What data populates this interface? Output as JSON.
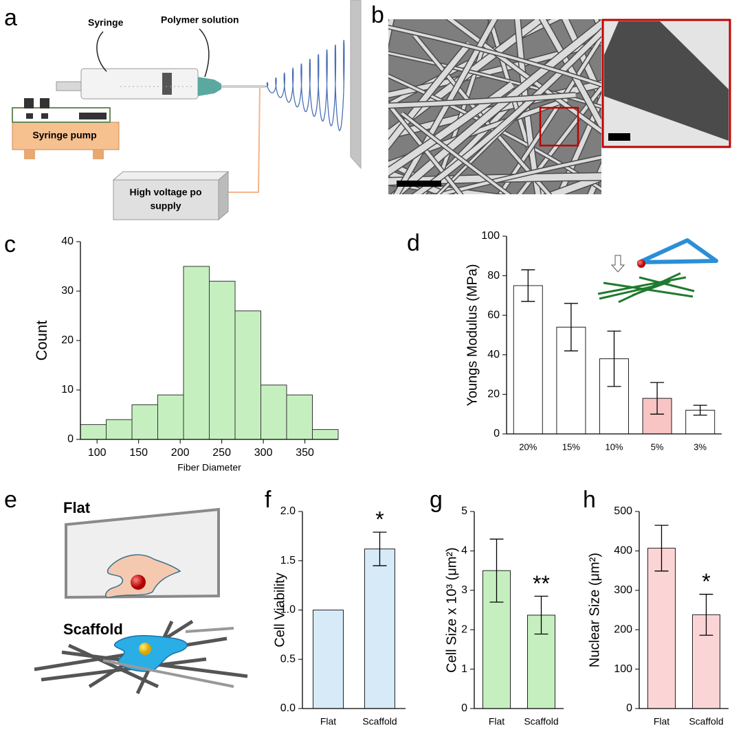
{
  "panel_labels": [
    "a",
    "b",
    "c",
    "d",
    "e",
    "f",
    "g",
    "h"
  ],
  "diagram_a": {
    "syringe": "Syringe",
    "polymer": "Polymer solution",
    "pump": "Syringe pump",
    "power": [
      "High voltage po",
      "supply"
    ]
  },
  "diagram_e": {
    "flat": "Flat",
    "scaffold": "Scaffold"
  },
  "chart_data": [
    {
      "type": "histogram",
      "x_label": "Fiber Diameter",
      "y_label": "Count",
      "bins": [
        80,
        111,
        142,
        173,
        204,
        235,
        266,
        297,
        328,
        359,
        390
      ],
      "values": [
        3,
        4,
        7,
        9,
        35,
        32,
        26,
        11,
        9,
        2
      ],
      "color": "#c6efc0",
      "xlim": [
        80,
        390
      ],
      "xticks": [
        100,
        150,
        200,
        250,
        300,
        350
      ],
      "ylim": [
        0,
        40
      ],
      "yticks": [
        0,
        10,
        20,
        30,
        40
      ]
    },
    {
      "type": "bar",
      "y_label": "Youngs Modulus (MPa)",
      "categories": [
        "20%",
        "15%",
        "10%",
        "5%",
        "3%"
      ],
      "values": [
        75,
        54,
        38,
        18,
        12
      ],
      "errors": [
        8,
        12,
        14,
        8,
        2.5
      ],
      "colors": [
        "#ffffff",
        "#ffffff",
        "#ffffff",
        "#f8c4c4",
        "#ffffff"
      ],
      "ylim": [
        0,
        100
      ],
      "yticks": [
        0,
        20,
        40,
        60,
        80,
        100
      ]
    },
    {
      "type": "bar",
      "y_label": "Cell Viability",
      "categories": [
        "Flat",
        "Scaffold"
      ],
      "values": [
        1.0,
        1.62
      ],
      "errors": [
        0,
        0.17
      ],
      "value_annotations": [
        null,
        "*"
      ],
      "color": "#d6eaf8",
      "ylim": [
        0,
        2
      ],
      "yticks": [
        {
          "value": 0,
          "label": "0.0"
        },
        0.5,
        {
          "value": 1,
          "label": "1.0"
        },
        1.5,
        {
          "value": 2,
          "label": "2.0"
        }
      ]
    },
    {
      "type": "bar",
      "y_label": "Cell Size x 10³ (μm²)",
      "categories": [
        "Flat",
        "Scaffold"
      ],
      "values": [
        3.5,
        2.37
      ],
      "errors": [
        0.8,
        0.48
      ],
      "value_annotations": [
        null,
        "**"
      ],
      "color": "#c6efc0",
      "ylim": [
        0,
        5
      ],
      "yticks": [
        0,
        1,
        2,
        3,
        4,
        5
      ]
    },
    {
      "type": "bar",
      "y_label": "Nuclear Size (μm²)",
      "categories": [
        "Flat",
        "Scaffold"
      ],
      "values": [
        407,
        238
      ],
      "errors": [
        58,
        52
      ],
      "value_annotations": [
        null,
        "*"
      ],
      "color": "#fbd5d5",
      "ylim": [
        0,
        500
      ],
      "yticks": [
        0,
        100,
        200,
        300,
        400,
        500
      ]
    }
  ]
}
